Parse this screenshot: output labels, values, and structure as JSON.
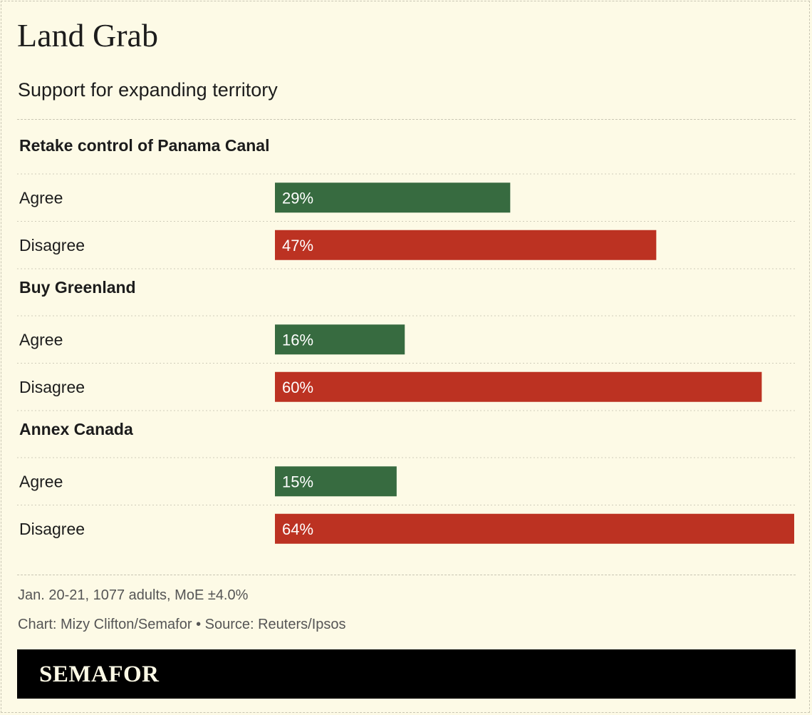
{
  "title": "Land Grab",
  "subtitle": "Support for expanding territory",
  "notes": {
    "survey": "Jan. 20-21, 1077 adults, MoE ±4.0%",
    "credit": "Chart: Mizy Clifton/Semafor • Source: Reuters/Ipsos"
  },
  "brand": {
    "logo_text": "SEMAFOR"
  },
  "colors": {
    "background": "#fdfae6",
    "agree": "#376b40",
    "disagree": "#bc3222",
    "text": "#1c1c1c",
    "label_text": "#ffffff"
  },
  "chart_data": {
    "type": "bar",
    "orientation": "horizontal",
    "unit": "%",
    "xlim": [
      0,
      64
    ],
    "groups": [
      {
        "name": "Retake control of Panama Canal",
        "bars": [
          {
            "label": "Agree",
            "value": 29,
            "display": "29%",
            "color": "#376b40"
          },
          {
            "label": "Disagree",
            "value": 47,
            "display": "47%",
            "color": "#bc3222"
          }
        ]
      },
      {
        "name": "Buy Greenland",
        "bars": [
          {
            "label": "Agree",
            "value": 16,
            "display": "16%",
            "color": "#376b40"
          },
          {
            "label": "Disagree",
            "value": 60,
            "display": "60%",
            "color": "#bc3222"
          }
        ]
      },
      {
        "name": "Annex Canada",
        "bars": [
          {
            "label": "Agree",
            "value": 15,
            "display": "15%",
            "color": "#376b40"
          },
          {
            "label": "Disagree",
            "value": 64,
            "display": "64%",
            "color": "#bc3222"
          }
        ]
      }
    ]
  }
}
